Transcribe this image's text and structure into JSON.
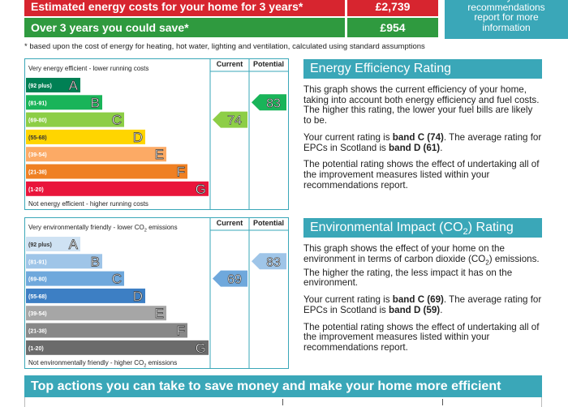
{
  "costs": {
    "rows": [
      {
        "label": "Estimated energy costs for your home for 3 years*",
        "value": "£2,739",
        "color": "#d7252f"
      },
      {
        "label": "Over 3 years you could save*",
        "value": "£954",
        "color": "#2f9a3f"
      }
    ],
    "note": "See your recommendations report for more information"
  },
  "footnote": "* based upon the cost of energy for heating, hot water, lighting and ventilation, calculated using standard assumptions",
  "charts": [
    {
      "top_text": [
        {
          "text": "Very energy efficient - lower running costs"
        }
      ],
      "bottom_text": [
        {
          "text": "Not energy efficient - higher running costs"
        }
      ],
      "columns": [
        "Current",
        "Potential"
      ],
      "bands": [
        {
          "range": "(92 plus)",
          "letter": "A",
          "color": "#008054"
        },
        {
          "range": "(81-91)",
          "letter": "B",
          "color": "#19b459"
        },
        {
          "range": "(69-80)",
          "letter": "C",
          "color": "#8dce46"
        },
        {
          "range": "(55-68)",
          "letter": "D",
          "color": "#ffd500"
        },
        {
          "range": "(39-54)",
          "letter": "E",
          "color": "#fcaa65"
        },
        {
          "range": "(21-38)",
          "letter": "F",
          "color": "#ef8023"
        },
        {
          "range": "(1-20)",
          "letter": "G",
          "color": "#e9153b"
        }
      ],
      "current": 74,
      "potential": 83,
      "heading": [
        {
          "text": "Energy Efficiency Rating"
        }
      ],
      "paragraphs": [
        [
          {
            "text": "This graph shows the current efficiency of your home, taking into account both energy efficiency and fuel costs. The higher this rating, the lower your fuel bills are likely to be."
          }
        ],
        [
          {
            "text": "Your current rating is "
          },
          {
            "text": "band C (74)",
            "style": "bold"
          },
          {
            "text": ". The average rating for EPCs in Scotland is "
          },
          {
            "text": "band D (61)",
            "style": "bold"
          },
          {
            "text": "."
          }
        ],
        [
          {
            "text": "The potential rating shows the effect of undertaking all of the improvement measures listed within your recommendations report."
          }
        ]
      ]
    },
    {
      "top_text": [
        {
          "text": "Very environmentally friendly - lower CO"
        },
        {
          "text": "2",
          "style": "sub"
        },
        {
          "text": " emissions"
        }
      ],
      "bottom_text": [
        {
          "text": "Not environmentally friendly - higher CO"
        },
        {
          "text": "2",
          "style": "sub"
        },
        {
          "text": " emissions"
        }
      ],
      "columns": [
        "Current",
        "Potential"
      ],
      "bands": [
        {
          "range": "(92 plus)",
          "letter": "A",
          "color": "#cfe2f3"
        },
        {
          "range": "(81-91)",
          "letter": "B",
          "color": "#9fc5e8"
        },
        {
          "range": "(69-80)",
          "letter": "C",
          "color": "#6fa8dc"
        },
        {
          "range": "(55-68)",
          "letter": "D",
          "color": "#3d7fc4"
        },
        {
          "range": "(39-54)",
          "letter": "E",
          "color": "#a6a6a6"
        },
        {
          "range": "(21-38)",
          "letter": "F",
          "color": "#888888"
        },
        {
          "range": "(1-20)",
          "letter": "G",
          "color": "#6b6b6b"
        }
      ],
      "current": 69,
      "potential": 83,
      "heading": [
        {
          "text": "Environmental Impact (CO"
        },
        {
          "text": "2",
          "style": "sub"
        },
        {
          "text": ") Rating"
        }
      ],
      "paragraphs": [
        [
          {
            "text": "This graph shows the effect of your home on the environment in terms of carbon dioxide (CO"
          },
          {
            "text": "2",
            "style": "sub"
          },
          {
            "text": ") emissions. The higher the rating, the less impact it has on the environment."
          }
        ],
        [
          {
            "text": "Your current rating is "
          },
          {
            "text": "band C (69)",
            "style": "bold"
          },
          {
            "text": ". The average rating for EPCs in Scotland is "
          },
          {
            "text": "band D (59)",
            "style": "bold"
          },
          {
            "text": "."
          }
        ],
        [
          {
            "text": "The potential rating shows the effect of undertaking all of the improvement measures listed within your recommendations report."
          }
        ]
      ]
    }
  ],
  "banner": "Top actions you can take to save money and make your home more efficient"
}
